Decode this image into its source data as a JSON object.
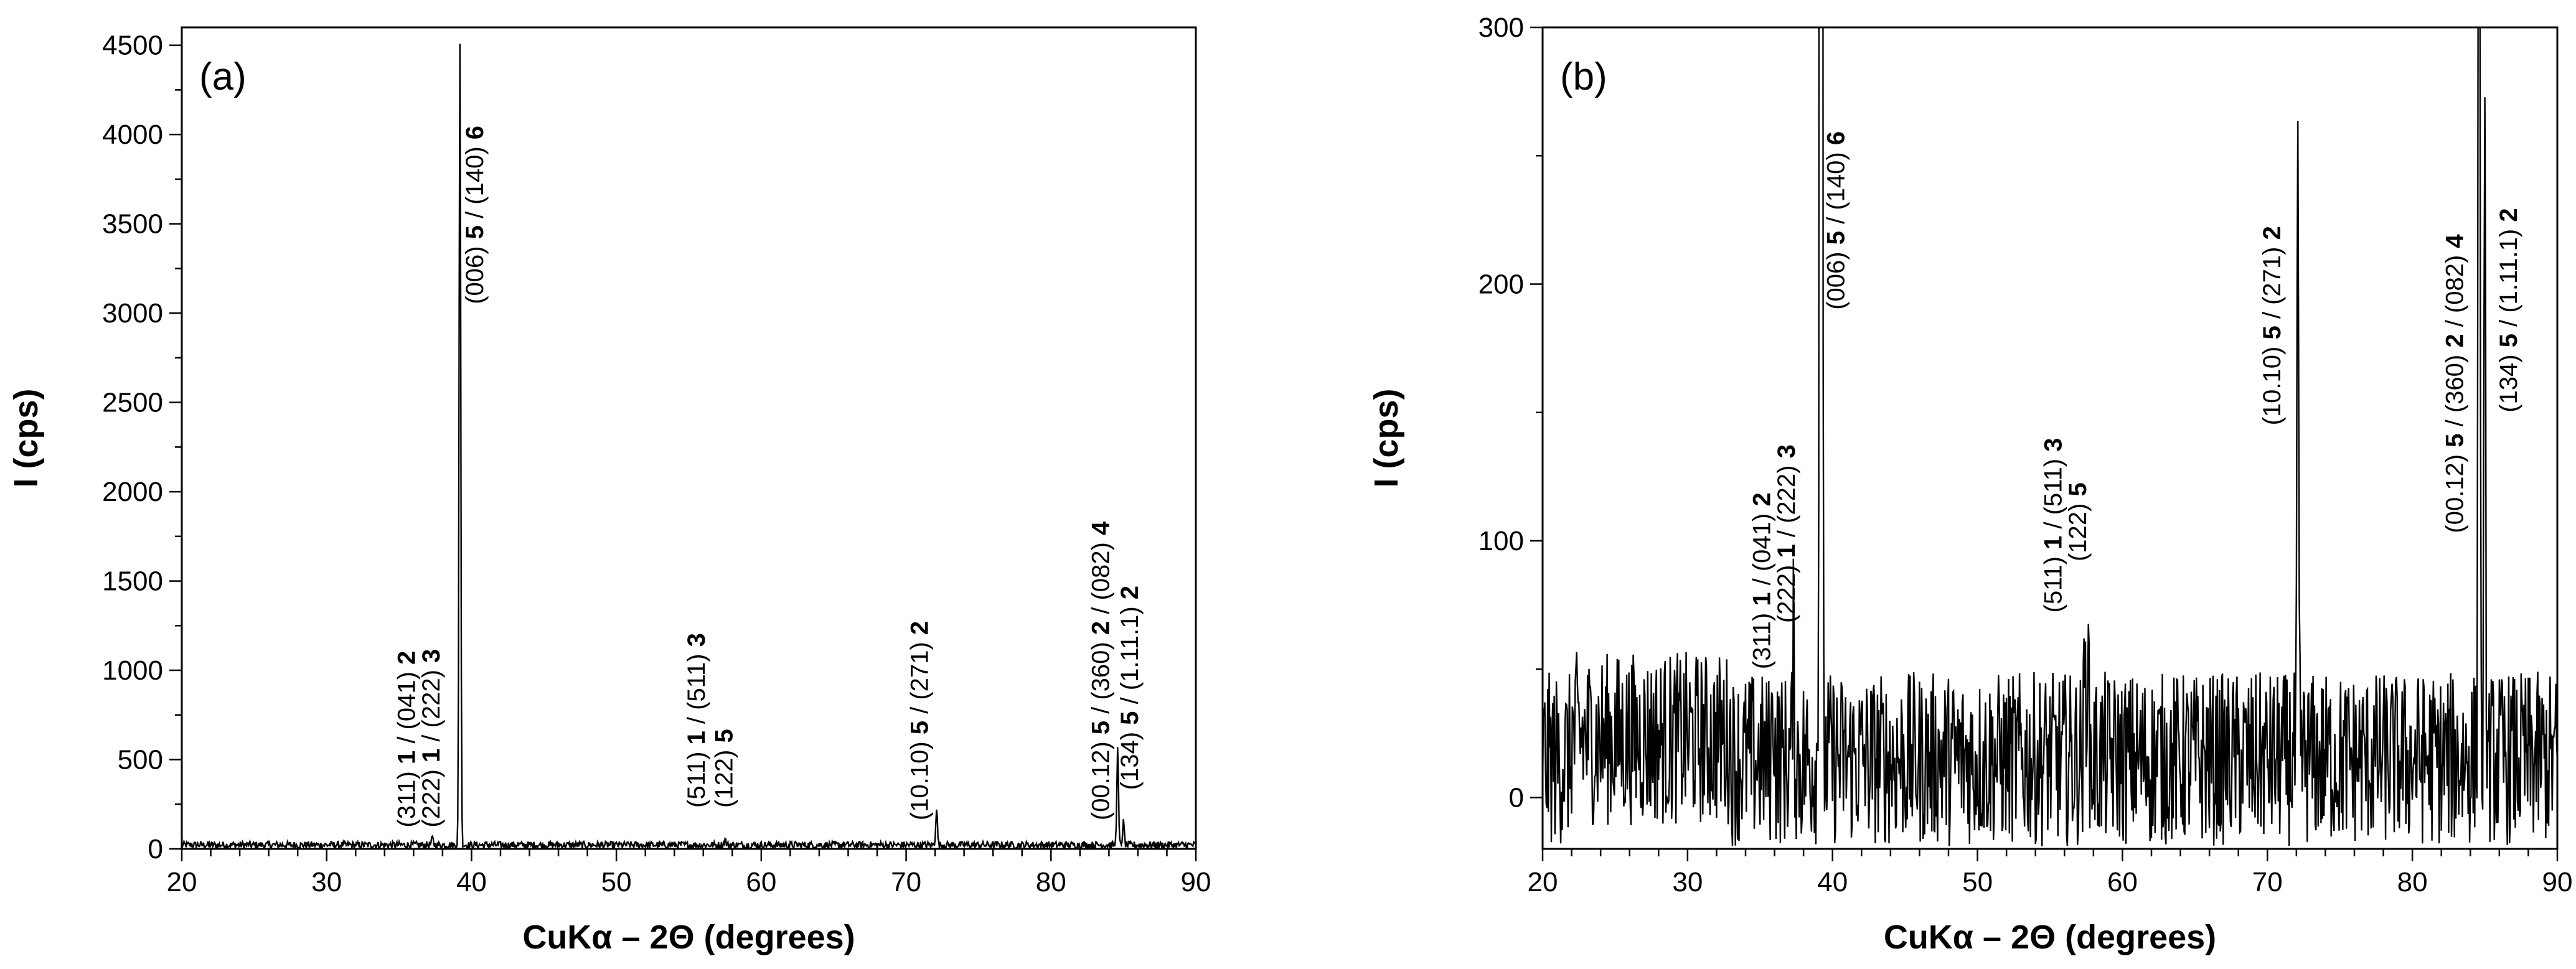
{
  "chart_data": [
    {
      "type": "line",
      "panel_label": "(a)",
      "xlabel": "CuKα – 2Θ (degrees)",
      "ylabel": "I (cps)",
      "xlim": [
        20,
        90
      ],
      "ylim": [
        0,
        4600
      ],
      "xticks": [
        20,
        30,
        40,
        50,
        60,
        70,
        80,
        90
      ],
      "yticks": [
        0,
        500,
        1000,
        1500,
        2000,
        2500,
        3000,
        3500,
        4000,
        4500
      ],
      "noise": {
        "base": 22,
        "amplitude": 20,
        "x_step": 0.05
      },
      "peaks": [
        {
          "x": 37.3,
          "y": 60
        },
        {
          "x": 39.2,
          "y": 4520
        },
        {
          "x": 57.5,
          "y": 55
        },
        {
          "x": 72.1,
          "y": 230
        },
        {
          "x": 84.6,
          "y": 560
        },
        {
          "x": 85.0,
          "y": 150
        }
      ],
      "annotations": [
        {
          "x": 36.1,
          "y": 120,
          "parts": [
            [
              "(311) ",
              0
            ],
            [
              "1",
              1
            ],
            [
              " / (041) ",
              0
            ],
            [
              "2",
              1
            ]
          ]
        },
        {
          "x": 37.8,
          "y": 120,
          "parts": [
            [
              "(222) ",
              0
            ],
            [
              "1",
              1
            ],
            [
              " / (222) ",
              0
            ],
            [
              "3",
              1
            ]
          ]
        },
        {
          "x": 40.8,
          "y": 3050,
          "parts": [
            [
              "(006) ",
              0
            ],
            [
              "5",
              1
            ],
            [
              " / (140) ",
              0
            ],
            [
              "6",
              1
            ]
          ]
        },
        {
          "x": 56.1,
          "y": 230,
          "parts": [
            [
              "(511) ",
              0
            ],
            [
              "1",
              1
            ],
            [
              " / (511) ",
              0
            ],
            [
              "3",
              1
            ]
          ]
        },
        {
          "x": 58.0,
          "y": 230,
          "parts": [
            [
              "(122) ",
              0
            ],
            [
              "5",
              1
            ]
          ]
        },
        {
          "x": 71.5,
          "y": 160,
          "parts": [
            [
              "(10.10) ",
              0
            ],
            [
              "5",
              1
            ],
            [
              " / (271) ",
              0
            ],
            [
              "2",
              1
            ]
          ]
        },
        {
          "x": 84.0,
          "y": 160,
          "parts": [
            [
              "(00.12) ",
              0
            ],
            [
              "5",
              1
            ],
            [
              " / (360) ",
              0
            ],
            [
              "2",
              1
            ],
            [
              " / (082) ",
              0
            ],
            [
              "4",
              1
            ]
          ]
        },
        {
          "x": 86.0,
          "y": 330,
          "parts": [
            [
              "(134) ",
              0
            ],
            [
              "5",
              1
            ],
            [
              " / (1.11.1) ",
              0
            ],
            [
              "2",
              1
            ]
          ]
        }
      ]
    },
    {
      "type": "line",
      "panel_label": "(b)",
      "xlabel": "CuKα – 2Θ (degrees)",
      "ylabel": "I (cps)",
      "xlim": [
        20,
        90
      ],
      "ylim": [
        -20,
        300
      ],
      "xticks": [
        20,
        30,
        40,
        50,
        60,
        70,
        80,
        90
      ],
      "yticks": [
        0,
        100,
        200,
        300
      ],
      "noise": {
        "base": 15,
        "amplitude": 34,
        "x_step": 0.05
      },
      "peaks": [
        {
          "x": 35.9,
          "y": 45
        },
        {
          "x": 37.3,
          "y": 60
        },
        {
          "x": 39.2,
          "y": 4520
        },
        {
          "x": 57.4,
          "y": 48
        },
        {
          "x": 57.6,
          "y": 70
        },
        {
          "x": 72.1,
          "y": 240
        },
        {
          "x": 84.6,
          "y": 560
        },
        {
          "x": 85.0,
          "y": 245
        }
      ],
      "annotations": [
        {
          "x": 35.7,
          "y": 50,
          "parts": [
            [
              "(311) ",
              0
            ],
            [
              "1",
              1
            ],
            [
              " / (041) ",
              0
            ],
            [
              "2",
              1
            ]
          ]
        },
        {
          "x": 37.4,
          "y": 68,
          "parts": [
            [
              "(222) ",
              0
            ],
            [
              "1",
              1
            ],
            [
              " / (222) ",
              0
            ],
            [
              "3",
              1
            ]
          ]
        },
        {
          "x": 40.8,
          "y": 190,
          "parts": [
            [
              "(006) ",
              0
            ],
            [
              "5",
              1
            ],
            [
              " / (140) ",
              0
            ],
            [
              "6",
              1
            ]
          ]
        },
        {
          "x": 55.8,
          "y": 72,
          "parts": [
            [
              "(511) ",
              0
            ],
            [
              "1",
              1
            ],
            [
              " / (511) ",
              0
            ],
            [
              "3",
              1
            ]
          ]
        },
        {
          "x": 57.5,
          "y": 92,
          "parts": [
            [
              "(122) ",
              0
            ],
            [
              "5",
              1
            ]
          ]
        },
        {
          "x": 70.9,
          "y": 145,
          "parts": [
            [
              "(10.10) ",
              0
            ],
            [
              "5",
              1
            ],
            [
              " / (271) ",
              0
            ],
            [
              "2",
              1
            ]
          ]
        },
        {
          "x": 83.5,
          "y": 103,
          "parts": [
            [
              "(00.12) ",
              0
            ],
            [
              "5",
              1
            ],
            [
              " / (360) ",
              0
            ],
            [
              "2",
              1
            ],
            [
              " / (082) ",
              0
            ],
            [
              "4",
              1
            ]
          ]
        },
        {
          "x": 87.2,
          "y": 150,
          "parts": [
            [
              "(134) ",
              0
            ],
            [
              "5",
              1
            ],
            [
              " / (1.11.1) ",
              0
            ],
            [
              "2",
              1
            ]
          ]
        }
      ]
    }
  ]
}
